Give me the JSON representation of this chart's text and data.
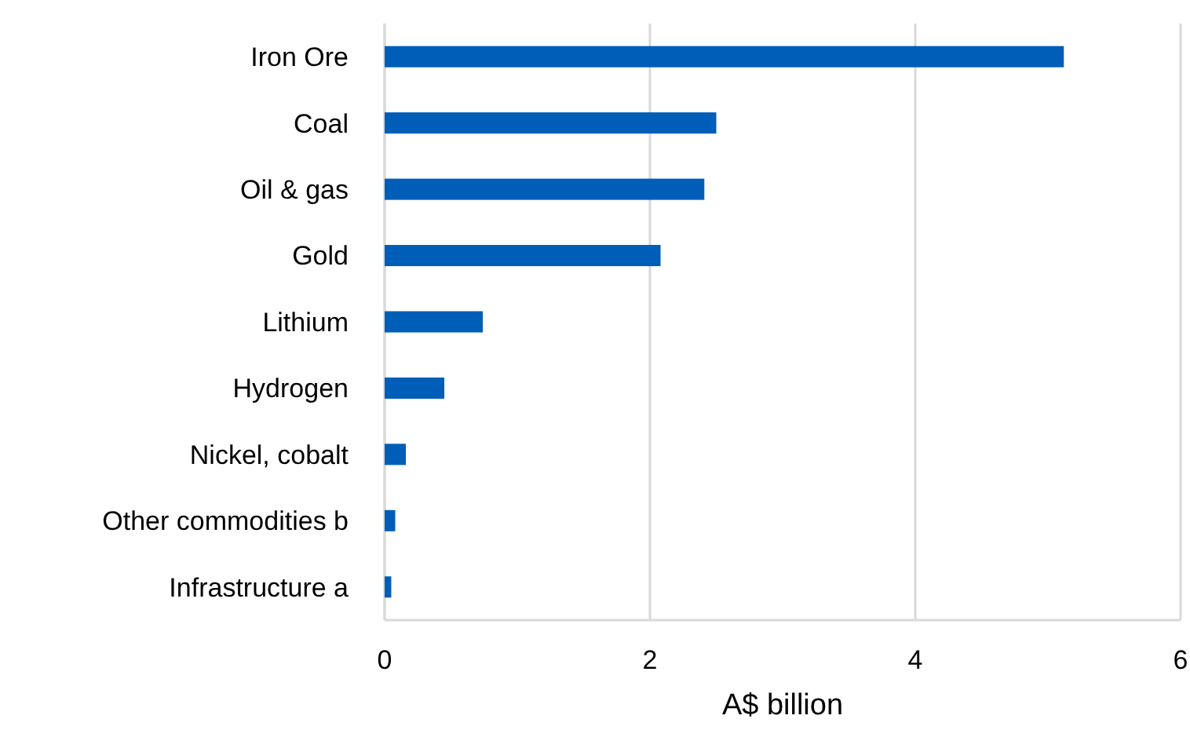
{
  "chart_data": {
    "type": "bar",
    "orientation": "horizontal",
    "xlabel": "A$ billion",
    "categories": [
      "Iron Ore",
      "Coal",
      "Oil & gas",
      "Gold",
      "Lithium",
      "Hydrogen",
      "Nickel, cobalt",
      "Other commodities b",
      "Infrastructure a"
    ],
    "values": [
      5.12,
      2.5,
      2.41,
      2.08,
      0.74,
      0.45,
      0.16,
      0.08,
      0.05
    ],
    "color": "#005eb8",
    "xlim": [
      0,
      6
    ],
    "xticks": [
      0,
      2,
      4,
      6
    ],
    "grid": "x"
  }
}
